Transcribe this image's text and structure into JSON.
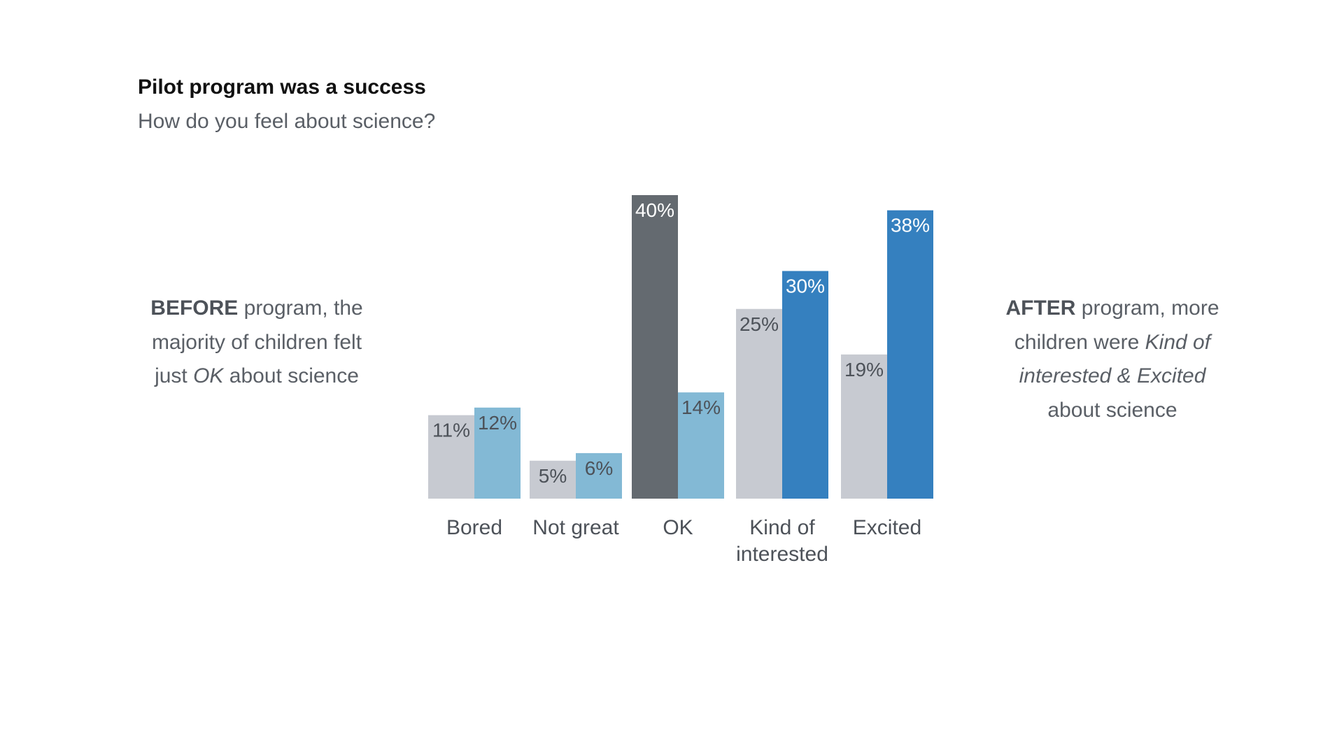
{
  "title": "Pilot program was a success",
  "subtitle": "How do you feel about science?",
  "annotations": {
    "before": {
      "bold": "BEFORE",
      "line1_rest": " program, the",
      "line2": "majority of children felt",
      "line3_pre": "just ",
      "line3_italic": "OK",
      "line3_post": " about science"
    },
    "after": {
      "bold": "AFTER",
      "line1_rest": " program, more",
      "line2_pre": "children were ",
      "line2_italic": "Kind of",
      "line3_italic": "interested & Excited",
      "line4": "about science"
    }
  },
  "colors": {
    "before_default": "#c7cad1",
    "after_default": "#83b9d5",
    "before_highlight": "#646a70",
    "after_highlight": "#3580bf",
    "label_dark": "#4d5259",
    "label_light": "#ffffff"
  },
  "chart_data": {
    "type": "bar",
    "title": "Pilot program was a success",
    "subtitle": "How do you feel about science?",
    "categories": [
      "Bored",
      "Not great",
      "OK",
      "Kind of interested",
      "Excited"
    ],
    "category_display": [
      [
        "Bored"
      ],
      [
        "Not great"
      ],
      [
        "OK"
      ],
      [
        "Kind of",
        "interested"
      ],
      [
        "Excited"
      ]
    ],
    "series": [
      {
        "key": "before",
        "values": [
          11,
          5,
          40,
          25,
          19
        ],
        "labels": [
          "11%",
          "5%",
          "40%",
          "25%",
          "19%"
        ],
        "highlight": [
          false,
          false,
          true,
          false,
          false
        ]
      },
      {
        "key": "after",
        "values": [
          12,
          6,
          14,
          30,
          38
        ],
        "labels": [
          "12%",
          "6%",
          "14%",
          "30%",
          "38%"
        ],
        "highlight": [
          false,
          false,
          false,
          true,
          true
        ]
      }
    ],
    "ylim": [
      0,
      40
    ],
    "grid": false,
    "legend": "none",
    "xlabel": "",
    "ylabel": ""
  }
}
